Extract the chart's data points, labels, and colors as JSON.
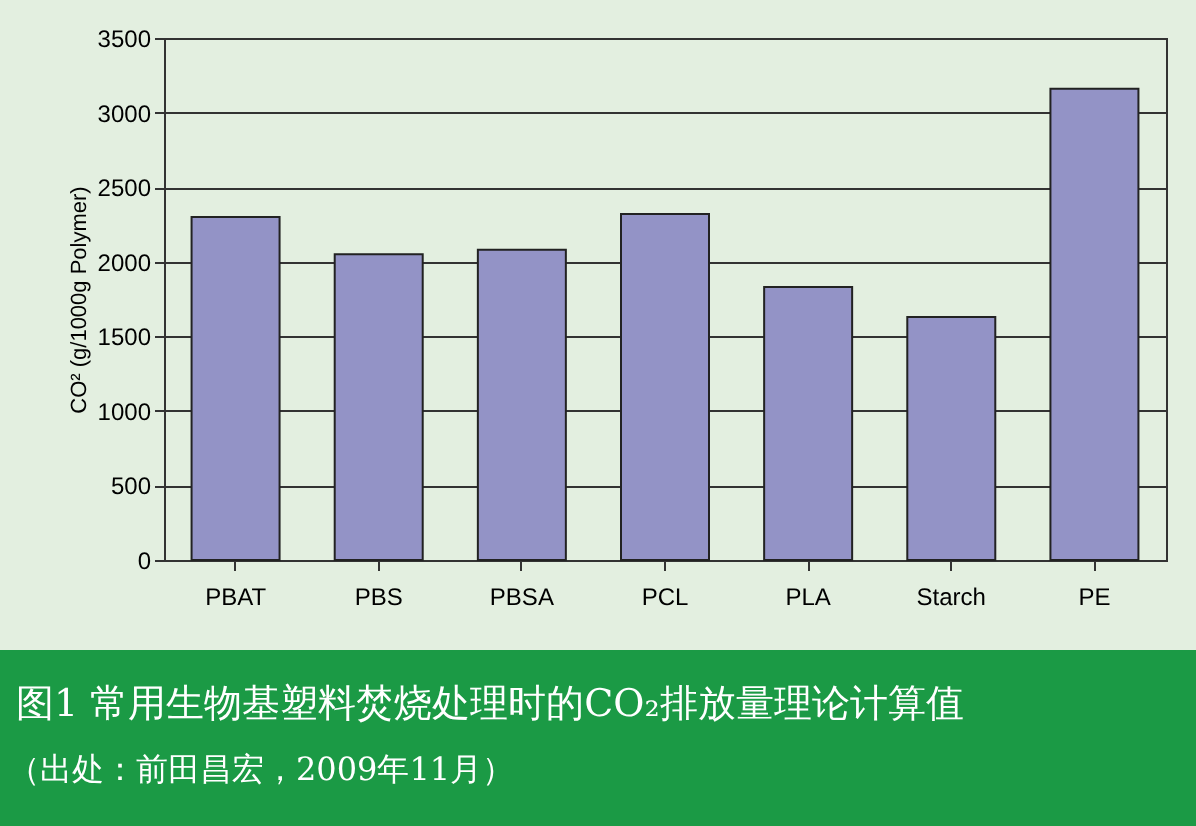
{
  "chart_data": {
    "type": "bar",
    "title": "图1 常用生物基塑料焚烧处理时的CO₂排放量理论计算值",
    "annotations": [
      "（出处：前田昌宏，2009年11月）"
    ],
    "ylabel": "CO² (g/1000g Polymer)",
    "categories": [
      "PBAT",
      "PBS",
      "PBSA",
      "PCL",
      "PLA",
      "Starch",
      "PE"
    ],
    "values": [
      2300,
      2050,
      2080,
      2320,
      1830,
      1630,
      3160
    ],
    "color": "#9393c6",
    "ylim": [
      0,
      3500
    ],
    "yticks": [
      0,
      500,
      1000,
      1500,
      2000,
      2500,
      3000,
      3500
    ],
    "grid": "y"
  }
}
